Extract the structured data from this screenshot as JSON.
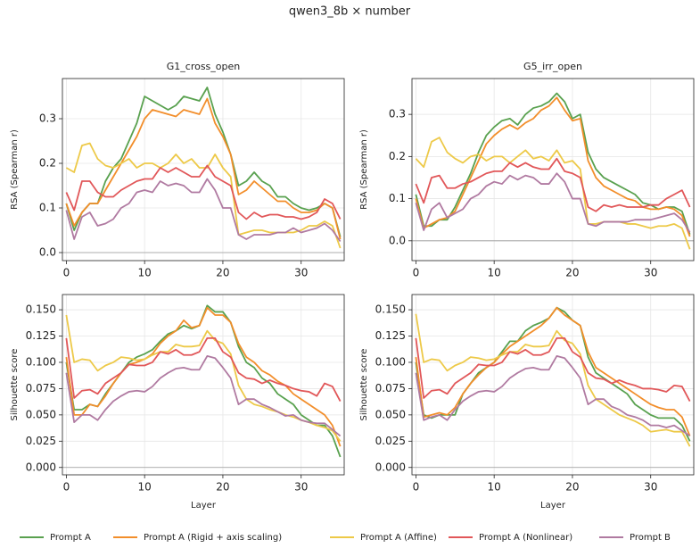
{
  "title": "qwen3_8b × number",
  "chart_data": [
    {
      "type": "line",
      "title": "G1_cross_open",
      "ylabel": "RSA (Spearman r)",
      "x": [
        0,
        1,
        2,
        3,
        4,
        5,
        6,
        7,
        8,
        9,
        10,
        11,
        12,
        13,
        14,
        15,
        16,
        17,
        18,
        19,
        20,
        21,
        22,
        23,
        24,
        25,
        26,
        27,
        28,
        29,
        30,
        31,
        32,
        33,
        34,
        35
      ],
      "xlim": [
        -0.5,
        35.5
      ],
      "xticks": [
        0,
        10,
        20,
        30
      ],
      "ylim": [
        -0.018,
        0.39
      ],
      "yticks": [
        {
          "value": 0,
          "label": "0.0"
        },
        0.1,
        0.2,
        0.3
      ],
      "hline": 0,
      "grid": true,
      "series": [
        {
          "name": "Prompt A",
          "color": "#59a14f",
          "values": [
            0.11,
            0.05,
            0.09,
            0.11,
            0.11,
            0.16,
            0.19,
            0.21,
            0.25,
            0.29,
            0.35,
            0.34,
            0.33,
            0.32,
            0.33,
            0.35,
            0.345,
            0.34,
            0.37,
            0.31,
            0.27,
            0.22,
            0.15,
            0.16,
            0.18,
            0.16,
            0.15,
            0.125,
            0.125,
            0.11,
            0.1,
            0.095,
            0.1,
            0.11,
            0.1,
            0.035
          ]
        },
        {
          "name": "Prompt A (Rigid + axis scaling)",
          "color": "#f28e2b",
          "values": [
            0.11,
            0.06,
            0.09,
            0.11,
            0.11,
            0.14,
            0.17,
            0.2,
            0.23,
            0.26,
            0.3,
            0.32,
            0.315,
            0.31,
            0.305,
            0.32,
            0.315,
            0.31,
            0.345,
            0.29,
            0.26,
            0.22,
            0.13,
            0.14,
            0.16,
            0.145,
            0.13,
            0.115,
            0.115,
            0.1,
            0.09,
            0.09,
            0.095,
            0.11,
            0.1,
            0.03
          ]
        },
        {
          "name": "Prompt A (Affine)",
          "color": "#edc948",
          "values": [
            0.19,
            0.18,
            0.24,
            0.245,
            0.21,
            0.195,
            0.19,
            0.2,
            0.21,
            0.19,
            0.2,
            0.2,
            0.19,
            0.2,
            0.22,
            0.2,
            0.21,
            0.19,
            0.19,
            0.22,
            0.19,
            0.17,
            0.04,
            0.045,
            0.05,
            0.05,
            0.045,
            0.045,
            0.045,
            0.045,
            0.05,
            0.06,
            0.06,
            0.07,
            0.06,
            0.01
          ]
        },
        {
          "name": "Prompt A (Nonlinear)",
          "color": "#e15759",
          "values": [
            0.135,
            0.095,
            0.16,
            0.16,
            0.135,
            0.125,
            0.125,
            0.14,
            0.15,
            0.16,
            0.165,
            0.165,
            0.19,
            0.18,
            0.19,
            0.18,
            0.17,
            0.17,
            0.195,
            0.17,
            0.16,
            0.15,
            0.09,
            0.075,
            0.09,
            0.08,
            0.085,
            0.085,
            0.08,
            0.08,
            0.075,
            0.08,
            0.09,
            0.12,
            0.11,
            0.075
          ]
        },
        {
          "name": "Prompt B",
          "color": "#b07aa1",
          "values": [
            0.095,
            0.03,
            0.08,
            0.09,
            0.06,
            0.065,
            0.075,
            0.1,
            0.11,
            0.135,
            0.14,
            0.135,
            0.16,
            0.15,
            0.155,
            0.15,
            0.135,
            0.135,
            0.165,
            0.14,
            0.1,
            0.1,
            0.04,
            0.03,
            0.04,
            0.04,
            0.04,
            0.045,
            0.045,
            0.055,
            0.045,
            0.05,
            0.055,
            0.065,
            0.05,
            0.025
          ]
        }
      ]
    },
    {
      "type": "line",
      "title": "G5_irr_open",
      "ylabel": "RSA (Spearman r)",
      "x": [
        0,
        1,
        2,
        3,
        4,
        5,
        6,
        7,
        8,
        9,
        10,
        11,
        12,
        13,
        14,
        15,
        16,
        17,
        18,
        19,
        20,
        21,
        22,
        23,
        24,
        25,
        26,
        27,
        28,
        29,
        30,
        31,
        32,
        33,
        34,
        35
      ],
      "xlim": [
        -0.5,
        35.5
      ],
      "xticks": [
        0,
        10,
        20,
        30
      ],
      "ylim": [
        -0.047,
        0.385
      ],
      "yticks": [
        {
          "value": 0,
          "label": "0.0"
        },
        0.1,
        0.2,
        0.3
      ],
      "hline": 0,
      "grid": true,
      "series": [
        {
          "color": "#59a14f",
          "values": [
            0.11,
            0.035,
            0.035,
            0.05,
            0.05,
            0.08,
            0.12,
            0.16,
            0.21,
            0.25,
            0.27,
            0.285,
            0.29,
            0.275,
            0.3,
            0.315,
            0.32,
            0.33,
            0.35,
            0.33,
            0.29,
            0.3,
            0.21,
            0.17,
            0.15,
            0.14,
            0.13,
            0.12,
            0.11,
            0.09,
            0.085,
            0.075,
            0.08,
            0.08,
            0.07,
            0.015
          ]
        },
        {
          "color": "#f28e2b",
          "values": [
            0.1,
            0.03,
            0.04,
            0.05,
            0.055,
            0.07,
            0.11,
            0.15,
            0.19,
            0.23,
            0.25,
            0.265,
            0.275,
            0.265,
            0.28,
            0.29,
            0.31,
            0.32,
            0.34,
            0.31,
            0.285,
            0.29,
            0.19,
            0.15,
            0.13,
            0.12,
            0.11,
            0.1,
            0.095,
            0.08,
            0.075,
            0.075,
            0.08,
            0.075,
            0.06,
            0.01
          ]
        },
        {
          "color": "#edc948",
          "values": [
            0.195,
            0.175,
            0.235,
            0.245,
            0.21,
            0.195,
            0.185,
            0.2,
            0.205,
            0.19,
            0.2,
            0.2,
            0.185,
            0.2,
            0.215,
            0.195,
            0.2,
            0.19,
            0.215,
            0.185,
            0.19,
            0.17,
            0.04,
            0.04,
            0.045,
            0.045,
            0.045,
            0.04,
            0.04,
            0.035,
            0.03,
            0.035,
            0.035,
            0.04,
            0.03,
            -0.02
          ]
        },
        {
          "color": "#e15759",
          "values": [
            0.135,
            0.09,
            0.15,
            0.155,
            0.125,
            0.125,
            0.135,
            0.14,
            0.15,
            0.16,
            0.165,
            0.165,
            0.185,
            0.175,
            0.185,
            0.175,
            0.17,
            0.17,
            0.195,
            0.165,
            0.16,
            0.15,
            0.08,
            0.07,
            0.085,
            0.08,
            0.085,
            0.08,
            0.08,
            0.08,
            0.085,
            0.085,
            0.1,
            0.11,
            0.12,
            0.08
          ]
        },
        {
          "color": "#b07aa1",
          "values": [
            0.09,
            0.025,
            0.075,
            0.09,
            0.055,
            0.065,
            0.075,
            0.1,
            0.11,
            0.13,
            0.14,
            0.135,
            0.155,
            0.145,
            0.155,
            0.15,
            0.135,
            0.135,
            0.16,
            0.14,
            0.1,
            0.1,
            0.04,
            0.035,
            0.045,
            0.045,
            0.045,
            0.045,
            0.05,
            0.05,
            0.05,
            0.055,
            0.06,
            0.065,
            0.05,
            0.02
          ]
        }
      ]
    },
    {
      "type": "line",
      "xlabel": "Layer",
      "ylabel": "Silhouette score",
      "x": [
        0,
        1,
        2,
        3,
        4,
        5,
        6,
        7,
        8,
        9,
        10,
        11,
        12,
        13,
        14,
        15,
        16,
        17,
        18,
        19,
        20,
        21,
        22,
        23,
        24,
        25,
        26,
        27,
        28,
        29,
        30,
        31,
        32,
        33,
        34,
        35
      ],
      "xlim": [
        -0.5,
        35.5
      ],
      "xticks": [
        0,
        10,
        20,
        30
      ],
      "ylim": [
        -0.007,
        0.1645
      ],
      "yticks": [
        {
          "value": 0,
          "label": "0.000"
        },
        {
          "value": 0.025,
          "label": "0.025"
        },
        {
          "value": 0.05,
          "label": "0.050"
        },
        {
          "value": 0.075,
          "label": "0.075"
        },
        {
          "value": 0.1,
          "label": "0.100"
        },
        {
          "value": 0.125,
          "label": "0.125"
        },
        {
          "value": 0.15,
          "label": "0.150"
        }
      ],
      "hline": 0,
      "grid": true,
      "series": [
        {
          "color": "#59a14f",
          "values": [
            0.1,
            0.055,
            0.055,
            0.06,
            0.058,
            0.07,
            0.08,
            0.09,
            0.1,
            0.105,
            0.108,
            0.112,
            0.12,
            0.127,
            0.13,
            0.135,
            0.132,
            0.135,
            0.154,
            0.148,
            0.148,
            0.138,
            0.115,
            0.1,
            0.095,
            0.085,
            0.08,
            0.07,
            0.065,
            0.06,
            0.05,
            0.045,
            0.04,
            0.04,
            0.03,
            0.01
          ]
        },
        {
          "color": "#f28e2b",
          "values": [
            0.105,
            0.05,
            0.05,
            0.06,
            0.058,
            0.068,
            0.08,
            0.09,
            0.098,
            0.1,
            0.103,
            0.108,
            0.118,
            0.125,
            0.13,
            0.14,
            0.133,
            0.135,
            0.152,
            0.145,
            0.145,
            0.138,
            0.118,
            0.105,
            0.1,
            0.092,
            0.088,
            0.082,
            0.078,
            0.07,
            0.065,
            0.06,
            0.055,
            0.05,
            0.04,
            0.02
          ]
        },
        {
          "color": "#edc948",
          "values": [
            0.145,
            0.1,
            0.103,
            0.102,
            0.092,
            0.097,
            0.1,
            0.105,
            0.104,
            0.102,
            0.103,
            0.107,
            0.11,
            0.11,
            0.117,
            0.115,
            0.115,
            0.116,
            0.13,
            0.121,
            0.118,
            0.108,
            0.078,
            0.065,
            0.06,
            0.058,
            0.055,
            0.053,
            0.05,
            0.048,
            0.045,
            0.043,
            0.04,
            0.038,
            0.035,
            0.025
          ]
        },
        {
          "color": "#e15759",
          "values": [
            0.123,
            0.066,
            0.073,
            0.074,
            0.07,
            0.08,
            0.085,
            0.09,
            0.098,
            0.097,
            0.097,
            0.1,
            0.11,
            0.108,
            0.112,
            0.107,
            0.107,
            0.11,
            0.123,
            0.123,
            0.11,
            0.105,
            0.09,
            0.085,
            0.084,
            0.08,
            0.083,
            0.08,
            0.078,
            0.075,
            0.073,
            0.072,
            0.068,
            0.08,
            0.077,
            0.063
          ]
        },
        {
          "color": "#b07aa1",
          "values": [
            0.09,
            0.043,
            0.05,
            0.05,
            0.045,
            0.055,
            0.063,
            0.068,
            0.072,
            0.073,
            0.072,
            0.077,
            0.085,
            0.09,
            0.094,
            0.095,
            0.093,
            0.093,
            0.106,
            0.104,
            0.095,
            0.085,
            0.06,
            0.065,
            0.065,
            0.06,
            0.057,
            0.053,
            0.049,
            0.05,
            0.045,
            0.043,
            0.042,
            0.042,
            0.036,
            0.03
          ]
        }
      ]
    },
    {
      "type": "line",
      "xlabel": "Layer",
      "ylabel": "Silhouette score",
      "x": [
        0,
        1,
        2,
        3,
        4,
        5,
        6,
        7,
        8,
        9,
        10,
        11,
        12,
        13,
        14,
        15,
        16,
        17,
        18,
        19,
        20,
        21,
        22,
        23,
        24,
        25,
        26,
        27,
        28,
        29,
        30,
        31,
        32,
        33,
        34,
        35
      ],
      "xlim": [
        -0.5,
        35.5
      ],
      "xticks": [
        0,
        10,
        20,
        30
      ],
      "ylim": [
        -0.007,
        0.1645
      ],
      "yticks": [
        {
          "value": 0,
          "label": "0.000"
        },
        {
          "value": 0.025,
          "label": "0.025"
        },
        {
          "value": 0.05,
          "label": "0.050"
        },
        {
          "value": 0.075,
          "label": "0.075"
        },
        {
          "value": 0.1,
          "label": "0.100"
        },
        {
          "value": 0.125,
          "label": "0.125"
        },
        {
          "value": 0.15,
          "label": "0.150"
        }
      ],
      "hline": 0,
      "grid": true,
      "series": [
        {
          "color": "#59a14f",
          "values": [
            0.1,
            0.05,
            0.047,
            0.05,
            0.05,
            0.05,
            0.07,
            0.08,
            0.09,
            0.095,
            0.1,
            0.11,
            0.12,
            0.12,
            0.13,
            0.135,
            0.138,
            0.142,
            0.152,
            0.148,
            0.14,
            0.135,
            0.105,
            0.09,
            0.085,
            0.08,
            0.075,
            0.07,
            0.06,
            0.055,
            0.05,
            0.047,
            0.047,
            0.047,
            0.04,
            0.025
          ]
        },
        {
          "color": "#f28e2b",
          "values": [
            0.105,
            0.048,
            0.05,
            0.052,
            0.05,
            0.057,
            0.07,
            0.08,
            0.088,
            0.095,
            0.1,
            0.108,
            0.115,
            0.12,
            0.125,
            0.13,
            0.135,
            0.142,
            0.152,
            0.145,
            0.14,
            0.135,
            0.11,
            0.095,
            0.09,
            0.085,
            0.08,
            0.075,
            0.07,
            0.065,
            0.06,
            0.057,
            0.055,
            0.055,
            0.048,
            0.03
          ]
        },
        {
          "color": "#edc948",
          "values": [
            0.146,
            0.1,
            0.103,
            0.102,
            0.092,
            0.097,
            0.1,
            0.105,
            0.104,
            0.102,
            0.103,
            0.107,
            0.11,
            0.11,
            0.117,
            0.115,
            0.115,
            0.116,
            0.13,
            0.121,
            0.118,
            0.108,
            0.078,
            0.065,
            0.06,
            0.055,
            0.05,
            0.047,
            0.044,
            0.04,
            0.034,
            0.035,
            0.036,
            0.034,
            0.034,
            0.02
          ]
        },
        {
          "color": "#e15759",
          "values": [
            0.123,
            0.066,
            0.073,
            0.074,
            0.07,
            0.08,
            0.085,
            0.09,
            0.098,
            0.097,
            0.097,
            0.1,
            0.11,
            0.108,
            0.112,
            0.107,
            0.107,
            0.11,
            0.123,
            0.123,
            0.11,
            0.105,
            0.09,
            0.085,
            0.084,
            0.08,
            0.083,
            0.08,
            0.078,
            0.075,
            0.075,
            0.074,
            0.072,
            0.078,
            0.077,
            0.063
          ]
        },
        {
          "color": "#b07aa1",
          "values": [
            0.09,
            0.045,
            0.048,
            0.05,
            0.045,
            0.055,
            0.063,
            0.068,
            0.072,
            0.073,
            0.072,
            0.077,
            0.085,
            0.09,
            0.094,
            0.095,
            0.093,
            0.093,
            0.106,
            0.104,
            0.095,
            0.085,
            0.06,
            0.065,
            0.065,
            0.058,
            0.055,
            0.05,
            0.048,
            0.045,
            0.04,
            0.04,
            0.038,
            0.04,
            0.035,
            0.03
          ]
        }
      ]
    }
  ]
}
